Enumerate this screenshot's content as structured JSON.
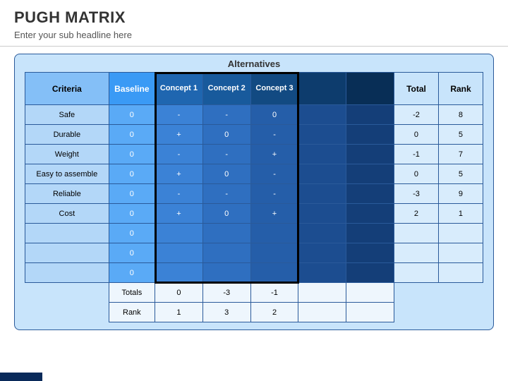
{
  "header": {
    "title": "PUGH MATRIX",
    "subtitle": "Enter your sub headline here"
  },
  "labels": {
    "alternatives": "Alternatives",
    "criteria": "Criteria",
    "baseline": "Baseline",
    "total": "Total",
    "rank": "Rank",
    "totals": "Totals",
    "rankRow": "Rank"
  },
  "concepts": [
    {
      "label": "Concept 1",
      "bg": "#1f66b0"
    },
    {
      "label": "Concept 2",
      "bg": "#185a9c"
    },
    {
      "label": "Concept 3",
      "bg": "#124a82"
    },
    {
      "label": "",
      "bg": "#0d3c6d"
    },
    {
      "label": "",
      "bg": "#082e56"
    }
  ],
  "concept_cell_colors": [
    "#3b82d6",
    "#2f6fc0",
    "#255ea9",
    "#1c4d90",
    "#143e78"
  ],
  "criteria": [
    "Safe",
    "Durable",
    "Weight",
    "Easy to assemble",
    "Reliable",
    "Cost",
    "",
    "",
    ""
  ],
  "baseline": [
    "0",
    "0",
    "0",
    "0",
    "0",
    "0",
    "0",
    "0",
    "0"
  ],
  "cells": [
    [
      "-",
      "-",
      "0",
      "",
      ""
    ],
    [
      "+",
      "0",
      "-",
      "",
      ""
    ],
    [
      "-",
      "-",
      "+",
      "",
      ""
    ],
    [
      "+",
      "0",
      "-",
      "",
      ""
    ],
    [
      "-",
      "-",
      "-",
      "",
      ""
    ],
    [
      "+",
      "0",
      "+",
      "",
      ""
    ],
    [
      "",
      "",
      "",
      "",
      ""
    ],
    [
      "",
      "",
      "",
      "",
      ""
    ],
    [
      "",
      "",
      "",
      "",
      ""
    ]
  ],
  "totals": [
    "-2",
    "0",
    "-1",
    "0",
    "-3",
    "2",
    "",
    "",
    ""
  ],
  "ranks": [
    "8",
    "5",
    "7",
    "5",
    "9",
    "1",
    "",
    "",
    ""
  ],
  "footer_totals": [
    "0",
    "-3",
    "-1",
    "",
    ""
  ],
  "footer_ranks": [
    "1",
    "3",
    "2",
    "",
    ""
  ],
  "style": {
    "panel_bg": "#c8e4fb",
    "border": "#2a5a9a",
    "criteria_header_bg": "#84bff7",
    "baseline_header_bg": "#3a9af5",
    "criteria_cell_bg": "#b3d7f8",
    "baseline_cell_bg": "#5aaaf6",
    "light_cell_bg": "#d8ecfc",
    "footer_bg": "#eef6fd",
    "title_fontsize": 22,
    "subtitle_fontsize": 13,
    "cell_fontsize": 11,
    "concept_box_border": "#000000"
  }
}
